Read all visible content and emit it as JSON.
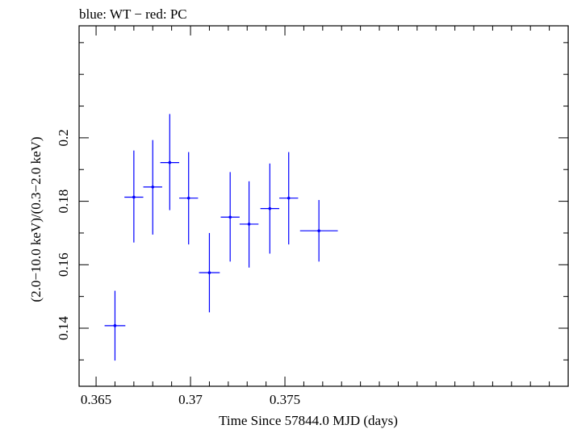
{
  "chart_data": {
    "type": "scatter",
    "title": "blue: WT − red: PC",
    "xlabel": "Time Since 57844.0 MJD (days)",
    "ylabel": "(2.0−10.0 keV)/(0.3−2.0 keV)",
    "xlim": [
      0.3641,
      0.39
    ],
    "ylim": [
      0.1217,
      0.2353
    ],
    "x_ticks": [
      0.365,
      0.37,
      0.375
    ],
    "x_tick_labels": [
      "0.365",
      "0.37",
      "0.375"
    ],
    "y_ticks": [
      0.14,
      0.16,
      0.18,
      0.2
    ],
    "y_tick_labels": [
      "0.14",
      "0.16",
      "0.18",
      "0.2"
    ],
    "grid": false,
    "series": [
      {
        "color": "#0000ff",
        "points": [
          {
            "x": 0.366,
            "y": 0.1408,
            "xerr": 0.00055,
            "yerr_low": 0.011,
            "yerr_high": 0.011
          },
          {
            "x": 0.367,
            "y": 0.1813,
            "xerr": 0.0005,
            "yerr_low": 0.0143,
            "yerr_high": 0.0147
          },
          {
            "x": 0.368,
            "y": 0.1845,
            "xerr": 0.0005,
            "yerr_low": 0.015,
            "yerr_high": 0.0148
          },
          {
            "x": 0.3689,
            "y": 0.1922,
            "xerr": 0.0005,
            "yerr_low": 0.015,
            "yerr_high": 0.0153
          },
          {
            "x": 0.3699,
            "y": 0.181,
            "xerr": 0.0005,
            "yerr_low": 0.0146,
            "yerr_high": 0.0145
          },
          {
            "x": 0.371,
            "y": 0.1575,
            "xerr": 0.00055,
            "yerr_low": 0.0125,
            "yerr_high": 0.0125
          },
          {
            "x": 0.3721,
            "y": 0.175,
            "xerr": 0.0005,
            "yerr_low": 0.014,
            "yerr_high": 0.0142
          },
          {
            "x": 0.3731,
            "y": 0.1728,
            "xerr": 0.0005,
            "yerr_low": 0.0137,
            "yerr_high": 0.0135
          },
          {
            "x": 0.3742,
            "y": 0.1777,
            "xerr": 0.0005,
            "yerr_low": 0.0142,
            "yerr_high": 0.0142
          },
          {
            "x": 0.3752,
            "y": 0.181,
            "xerr": 0.0005,
            "yerr_low": 0.0146,
            "yerr_high": 0.0145
          },
          {
            "x": 0.3768,
            "y": 0.1707,
            "xerr": 0.001,
            "yerr_low": 0.0097,
            "yerr_high": 0.0097
          }
        ]
      }
    ]
  }
}
